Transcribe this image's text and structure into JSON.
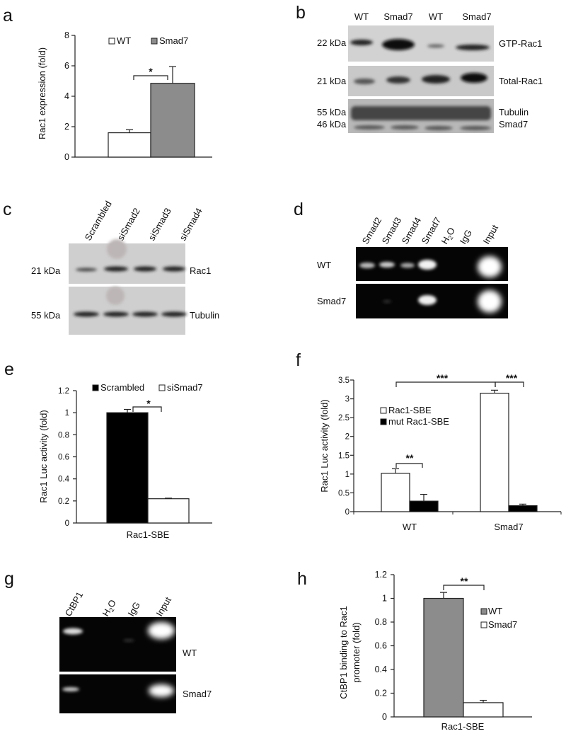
{
  "panels": {
    "a": {
      "letter": "a",
      "legend": [
        "WT",
        "Smad7"
      ],
      "ylabel": "Rac1 expression (fold)",
      "yticks": [
        "0",
        "2",
        "4",
        "6",
        "8"
      ],
      "sig": "*"
    },
    "b": {
      "letter": "b",
      "lanes": [
        "WT",
        "Smad7",
        "WT",
        "Smad7"
      ],
      "mw": [
        "22 kDa",
        "21 kDa",
        "55 kDa",
        "46 kDa"
      ],
      "bands": [
        "GTP-Rac1",
        "Total-Rac1",
        "Tubulin",
        "Smad7"
      ]
    },
    "c": {
      "letter": "c",
      "lanes": [
        "Scrambled",
        "siSmad2",
        "siSmad3",
        "siSmad4"
      ],
      "mw": [
        "21 kDa",
        "55 kDa"
      ],
      "bands": [
        "Rac1",
        "Tubulin"
      ]
    },
    "d": {
      "letter": "d",
      "lanes": [
        "Smad2",
        "Smad3",
        "Smad4",
        "Smad7",
        "H",
        "2",
        "O",
        "IgG",
        "Input"
      ],
      "rows": [
        "WT",
        "Smad7"
      ]
    },
    "e": {
      "letter": "e",
      "legend": [
        "Scrambled",
        "siSmad7"
      ],
      "ylabel": "Rac1 Luc activity (fold)",
      "yticks": [
        "0",
        "0.2",
        "0.4",
        "0.6",
        "0.8",
        "1",
        "1.2"
      ],
      "xlabel": "Rac1-SBE",
      "sig": "*"
    },
    "f": {
      "letter": "f",
      "legend": [
        "Rac1-SBE",
        "mut Rac1-SBE"
      ],
      "ylabel": "Rac1 Luc activity (fold)",
      "yticks": [
        "0",
        "0.5",
        "1",
        "1.5",
        "2",
        "2.5",
        "3",
        "3.5"
      ],
      "sig": [
        "**",
        "***",
        "***"
      ]
    },
    "g": {
      "letter": "g",
      "lanes": [
        "CtBP1",
        "H",
        "2",
        "O",
        "IgG",
        "Input"
      ],
      "rows": [
        "WT",
        "Smad7"
      ]
    },
    "h": {
      "letter": "h",
      "legend": [
        "WT",
        "Smad7"
      ],
      "ylabel_lines": [
        "CtBP1 binding to Rac1",
        "promoter (fold)"
      ],
      "yticks": [
        "0",
        "0.2",
        "0.4",
        "0.6",
        "0.8",
        "1",
        "1.2"
      ],
      "xlabel": "Rac1-SBE",
      "sig": "**"
    }
  },
  "chart_data": [
    {
      "panel": "a",
      "type": "bar",
      "categories": [
        ""
      ],
      "series": [
        {
          "name": "WT",
          "values": [
            1.6
          ],
          "error": [
            0.2
          ],
          "color": "#ffffff"
        },
        {
          "name": "Smad7",
          "values": [
            4.85
          ],
          "error": [
            1.1
          ],
          "color": "#8c8c8c"
        }
      ],
      "ylabel": "Rac1 expression (fold)",
      "ylim": [
        0,
        8
      ]
    },
    {
      "panel": "e",
      "type": "bar",
      "categories": [
        "Rac1-SBE"
      ],
      "series": [
        {
          "name": "Scrambled",
          "values": [
            1.0
          ],
          "error": [
            0.03
          ],
          "color": "#000000"
        },
        {
          "name": "siSmad7",
          "values": [
            0.22
          ],
          "error": [
            0.005
          ],
          "color": "#ffffff"
        }
      ],
      "ylabel": "Rac1 Luc activity (fold)",
      "ylim": [
        0,
        1.2
      ]
    },
    {
      "panel": "f",
      "type": "bar",
      "categories": [
        "WT",
        "Smad7"
      ],
      "series": [
        {
          "name": "Rac1-SBE",
          "values": [
            1.02,
            3.15
          ],
          "error": [
            0.12,
            0.08
          ],
          "color": "#ffffff"
        },
        {
          "name": "mut Rac1-SBE",
          "values": [
            0.28,
            0.16
          ],
          "error": [
            0.18,
            0.04
          ],
          "color": "#000000"
        }
      ],
      "ylabel": "Rac1 Luc activity (fold)",
      "ylim": [
        0,
        3.5
      ]
    },
    {
      "panel": "h",
      "type": "bar",
      "categories": [
        "Rac1-SBE"
      ],
      "series": [
        {
          "name": "WT",
          "values": [
            1.0
          ],
          "error": [
            0.05
          ],
          "color": "#8c8c8c"
        },
        {
          "name": "Smad7",
          "values": [
            0.12
          ],
          "error": [
            0.02
          ],
          "color": "#ffffff"
        }
      ],
      "ylim": [
        0,
        1.2
      ]
    }
  ]
}
